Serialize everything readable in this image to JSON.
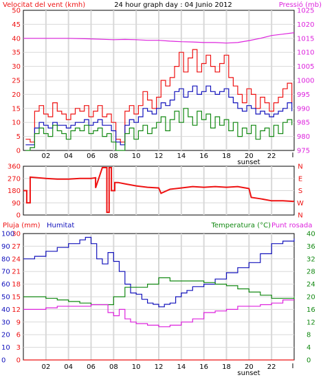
{
  "colors": {
    "red": "#ee1111",
    "magenta": "#dd22dd",
    "blue": "#1111bb",
    "green": "#118811",
    "grid": "#d8d8d8",
    "frame": "#000000",
    "background": "#ffffff",
    "plot_background": "#ffffff"
  },
  "chart_data": [
    {
      "type": "line",
      "title": "24 hour graph day : 04 Junio 2012",
      "ylabel_left": "Velocitat del vent (kmh)",
      "ylabel_right": "Pressió (mb)",
      "x_ticks": [
        "02",
        "04",
        "06",
        "08",
        "10",
        "12",
        "14",
        "16",
        "18",
        "20",
        "22"
      ],
      "x_extra_label": "sunset",
      "x_range_hours": [
        0,
        24
      ],
      "ylim_left": [
        0,
        50
      ],
      "yticks_left": [
        "0",
        "5",
        "10",
        "15",
        "20",
        "25",
        "30",
        "35",
        "40",
        "45",
        "50"
      ],
      "ylim_right": [
        975,
        1025
      ],
      "yticks_right": [
        "975",
        "980",
        "985",
        "990",
        "995",
        "1000",
        "1005",
        "1010",
        "1015",
        "1020",
        "1025"
      ],
      "grid": true,
      "series": [
        {
          "key": "gust",
          "color": "red",
          "axis": "left",
          "x": [
            0.2,
            0.6,
            1.0,
            1.4,
            1.8,
            2.2,
            2.6,
            3.0,
            3.4,
            3.8,
            4.2,
            4.6,
            5.0,
            5.4,
            5.8,
            6.2,
            6.6,
            7.0,
            7.4,
            7.8,
            8.2,
            8.6,
            9.0,
            9.4,
            9.8,
            10.2,
            10.6,
            11.0,
            11.4,
            11.8,
            12.2,
            12.6,
            13.0,
            13.4,
            13.8,
            14.2,
            14.6,
            15.0,
            15.4,
            15.8,
            16.2,
            16.6,
            17.0,
            17.4,
            17.8,
            18.2,
            18.6,
            19.0,
            19.4,
            19.8,
            20.2,
            20.6,
            21.0,
            21.4,
            21.8,
            22.2,
            22.6,
            23.0,
            23.4,
            23.8
          ],
          "values": [
            4,
            3,
            14,
            16,
            13,
            12,
            17,
            14,
            13,
            11,
            13,
            15,
            14,
            16,
            12,
            14,
            16,
            12,
            13,
            10,
            4,
            3,
            14,
            16,
            13,
            16,
            21,
            18,
            15,
            19,
            25,
            23,
            26,
            30,
            35,
            28,
            33,
            36,
            28,
            31,
            34,
            30,
            28,
            31,
            34,
            26,
            23,
            20,
            17,
            22,
            20,
            15,
            19,
            17,
            14,
            17,
            19,
            22,
            24,
            17
          ]
        },
        {
          "key": "average",
          "color": "blue",
          "axis": "left",
          "x": [
            0.2,
            0.6,
            1.0,
            1.4,
            1.8,
            2.2,
            2.6,
            3.0,
            3.4,
            3.8,
            4.2,
            4.6,
            5.0,
            5.4,
            5.8,
            6.2,
            6.6,
            7.0,
            7.4,
            7.8,
            8.2,
            8.6,
            9.0,
            9.4,
            9.8,
            10.2,
            10.6,
            11.0,
            11.4,
            11.8,
            12.2,
            12.6,
            13.0,
            13.4,
            13.8,
            14.2,
            14.6,
            15.0,
            15.4,
            15.8,
            16.2,
            16.6,
            17.0,
            17.4,
            17.8,
            18.2,
            18.6,
            19.0,
            19.4,
            19.8,
            20.2,
            20.6,
            21.0,
            21.4,
            21.8,
            22.2,
            22.6,
            23.0,
            23.4,
            23.8
          ],
          "values": [
            2,
            2,
            8,
            10,
            9,
            8,
            10,
            9,
            9,
            8,
            9,
            10,
            10,
            11,
            9,
            10,
            11,
            9,
            9,
            7,
            3,
            2,
            9,
            11,
            10,
            12,
            15,
            14,
            13,
            15,
            17,
            16,
            18,
            21,
            22,
            19,
            21,
            23,
            20,
            21,
            23,
            21,
            20,
            21,
            22,
            19,
            17,
            15,
            14,
            16,
            15,
            13,
            14,
            13,
            12,
            13,
            14,
            15,
            17,
            14
          ]
        },
        {
          "key": "minimum",
          "color": "green",
          "axis": "left",
          "x": [
            0.2,
            0.6,
            1.0,
            1.4,
            1.8,
            2.2,
            2.6,
            3.0,
            3.4,
            3.8,
            4.2,
            4.6,
            5.0,
            5.4,
            5.8,
            6.2,
            6.6,
            7.0,
            7.4,
            7.8,
            8.2,
            8.6,
            9.0,
            9.4,
            9.8,
            10.2,
            10.6,
            11.0,
            11.4,
            11.8,
            12.2,
            12.6,
            13.0,
            13.4,
            13.8,
            14.2,
            14.6,
            15.0,
            15.4,
            15.8,
            16.2,
            16.6,
            17.0,
            17.4,
            17.8,
            18.2,
            18.6,
            19.0,
            19.4,
            19.8,
            20.2,
            20.6,
            21.0,
            21.4,
            21.8,
            22.2,
            22.6,
            23.0,
            23.4,
            23.8
          ],
          "values": [
            0,
            1,
            6,
            8,
            6,
            5,
            9,
            7,
            6,
            4,
            7,
            8,
            7,
            9,
            6,
            7,
            8,
            5,
            6,
            3,
            0,
            0,
            6,
            8,
            4,
            7,
            9,
            6,
            8,
            10,
            12,
            7,
            11,
            14,
            10,
            15,
            12,
            9,
            14,
            11,
            13,
            8,
            12,
            9,
            11,
            7,
            10,
            5,
            8,
            6,
            9,
            4,
            7,
            8,
            5,
            9,
            6,
            10,
            11,
            9
          ]
        },
        {
          "key": "pressure",
          "color": "magenta",
          "axis": "right",
          "x": [
            0,
            2,
            4,
            6,
            8,
            9,
            10,
            11,
            12,
            13,
            14,
            15,
            16,
            17,
            18,
            19,
            20,
            21,
            22,
            23,
            24
          ],
          "values": [
            1015,
            1015,
            1015,
            1014.8,
            1014.5,
            1014.6,
            1014.5,
            1014.3,
            1014.3,
            1014,
            1013.8,
            1013.7,
            1013.5,
            1013.5,
            1013.3,
            1013.5,
            1014.2,
            1015,
            1016,
            1016.5,
            1017
          ]
        }
      ]
    },
    {
      "type": "line",
      "ylabel_right": [
        "N",
        "W",
        "S",
        "E",
        "N"
      ],
      "x_range_hours": [
        0,
        24
      ],
      "ylim": [
        0,
        360
      ],
      "yticks": [
        "0",
        "90",
        "180",
        "270",
        "360"
      ],
      "grid": true,
      "series": [
        {
          "key": "direction",
          "color": "red",
          "x": [
            0,
            0.3,
            0.3,
            0.6,
            0.6,
            2,
            3,
            4,
            5,
            6,
            6.4,
            6.4,
            7,
            7.4,
            7.4,
            7.6,
            7.6,
            7.8,
            7.8,
            8.1,
            8.1,
            8.4,
            9,
            10,
            11,
            12,
            12.2,
            13,
            14,
            15,
            16,
            17,
            18,
            19,
            20,
            20.2,
            21,
            22,
            23,
            24
          ],
          "values": [
            180,
            180,
            90,
            90,
            280,
            270,
            265,
            265,
            270,
            270,
            275,
            200,
            350,
            350,
            20,
            20,
            350,
            350,
            180,
            180,
            240,
            240,
            230,
            215,
            205,
            200,
            160,
            190,
            200,
            210,
            205,
            210,
            205,
            210,
            195,
            130,
            120,
            105,
            105,
            100
          ]
        }
      ]
    },
    {
      "type": "line",
      "ylabel_left": "Pluja (mm)",
      "ylabel_left2": "Humitat",
      "ylabel_right": "Temperatura (°C)",
      "ylabel_right2": "Punt rosada",
      "x_ticks": [
        "02",
        "04",
        "06",
        "08",
        "10",
        "12",
        "14",
        "16",
        "18",
        "20",
        "22"
      ],
      "x_extra_label": "sunset",
      "x_range_hours": [
        0,
        24
      ],
      "ylim_rain": [
        0,
        30
      ],
      "yticks_rain": [
        "0",
        "3",
        "6",
        "9",
        "12",
        "15",
        "18",
        "21",
        "24",
        "27",
        "30"
      ],
      "ylim_humidity": [
        0,
        100
      ],
      "yticks_humidity": [
        "0",
        "10",
        "20",
        "30",
        "40",
        "50",
        "60",
        "70",
        "80",
        "90",
        "100"
      ],
      "ylim_temperature": [
        0,
        40
      ],
      "yticks_temperature": [
        "0",
        "4",
        "8",
        "12",
        "16",
        "20",
        "24",
        "28",
        "32",
        "36",
        "40"
      ],
      "grid": true,
      "series": [
        {
          "key": "humidity",
          "color": "blue",
          "axis": "humidity",
          "x": [
            0,
            0.5,
            1,
            2,
            3,
            4,
            5,
            5.5,
            6,
            6.5,
            7,
            7.5,
            8,
            8.5,
            9,
            9.5,
            10,
            10.5,
            11,
            11.5,
            12,
            12.5,
            13,
            13.5,
            14,
            14.5,
            15,
            16,
            17,
            18,
            19,
            20,
            21,
            22,
            23,
            24
          ],
          "values": [
            80,
            80,
            82,
            86,
            89,
            92,
            95,
            97,
            92,
            80,
            76,
            85,
            78,
            70,
            60,
            53,
            52,
            48,
            45,
            44,
            42,
            44,
            45,
            50,
            53,
            55,
            58,
            60,
            64,
            69,
            73,
            77,
            84,
            92,
            94,
            96
          ]
        },
        {
          "key": "temperature",
          "color": "green",
          "axis": "temperature",
          "x": [
            0,
            1,
            2,
            3,
            4,
            5,
            6,
            7,
            8,
            9,
            10,
            11,
            12,
            13,
            14,
            15,
            16,
            17,
            18,
            19,
            20,
            21,
            22,
            23,
            24
          ],
          "values": [
            20,
            20,
            19.5,
            19,
            18.5,
            18,
            17.5,
            17.5,
            20,
            23,
            23,
            24,
            26,
            25,
            25,
            25,
            24.5,
            24,
            23.5,
            22.5,
            21.5,
            20.5,
            19.5,
            19.5,
            20
          ]
        },
        {
          "key": "dewpoint",
          "color": "magenta",
          "axis": "temperature",
          "x": [
            0,
            1,
            2,
            3,
            4,
            5,
            6,
            7,
            7.5,
            8,
            8.5,
            9,
            9.5,
            10,
            11,
            12,
            13,
            14,
            15,
            16,
            17,
            18,
            19,
            20,
            21,
            22,
            23,
            24
          ],
          "values": [
            16,
            16,
            16.5,
            17,
            17,
            17,
            17.5,
            17.5,
            15,
            14,
            16,
            13,
            12,
            11.5,
            11,
            10.5,
            11,
            12,
            13,
            15,
            15.5,
            16,
            17,
            17,
            17.5,
            18,
            19,
            19
          ]
        },
        {
          "key": "rain",
          "color": "red",
          "axis": "rain",
          "x": [
            0,
            24
          ],
          "values": [
            0,
            0
          ]
        }
      ]
    }
  ]
}
